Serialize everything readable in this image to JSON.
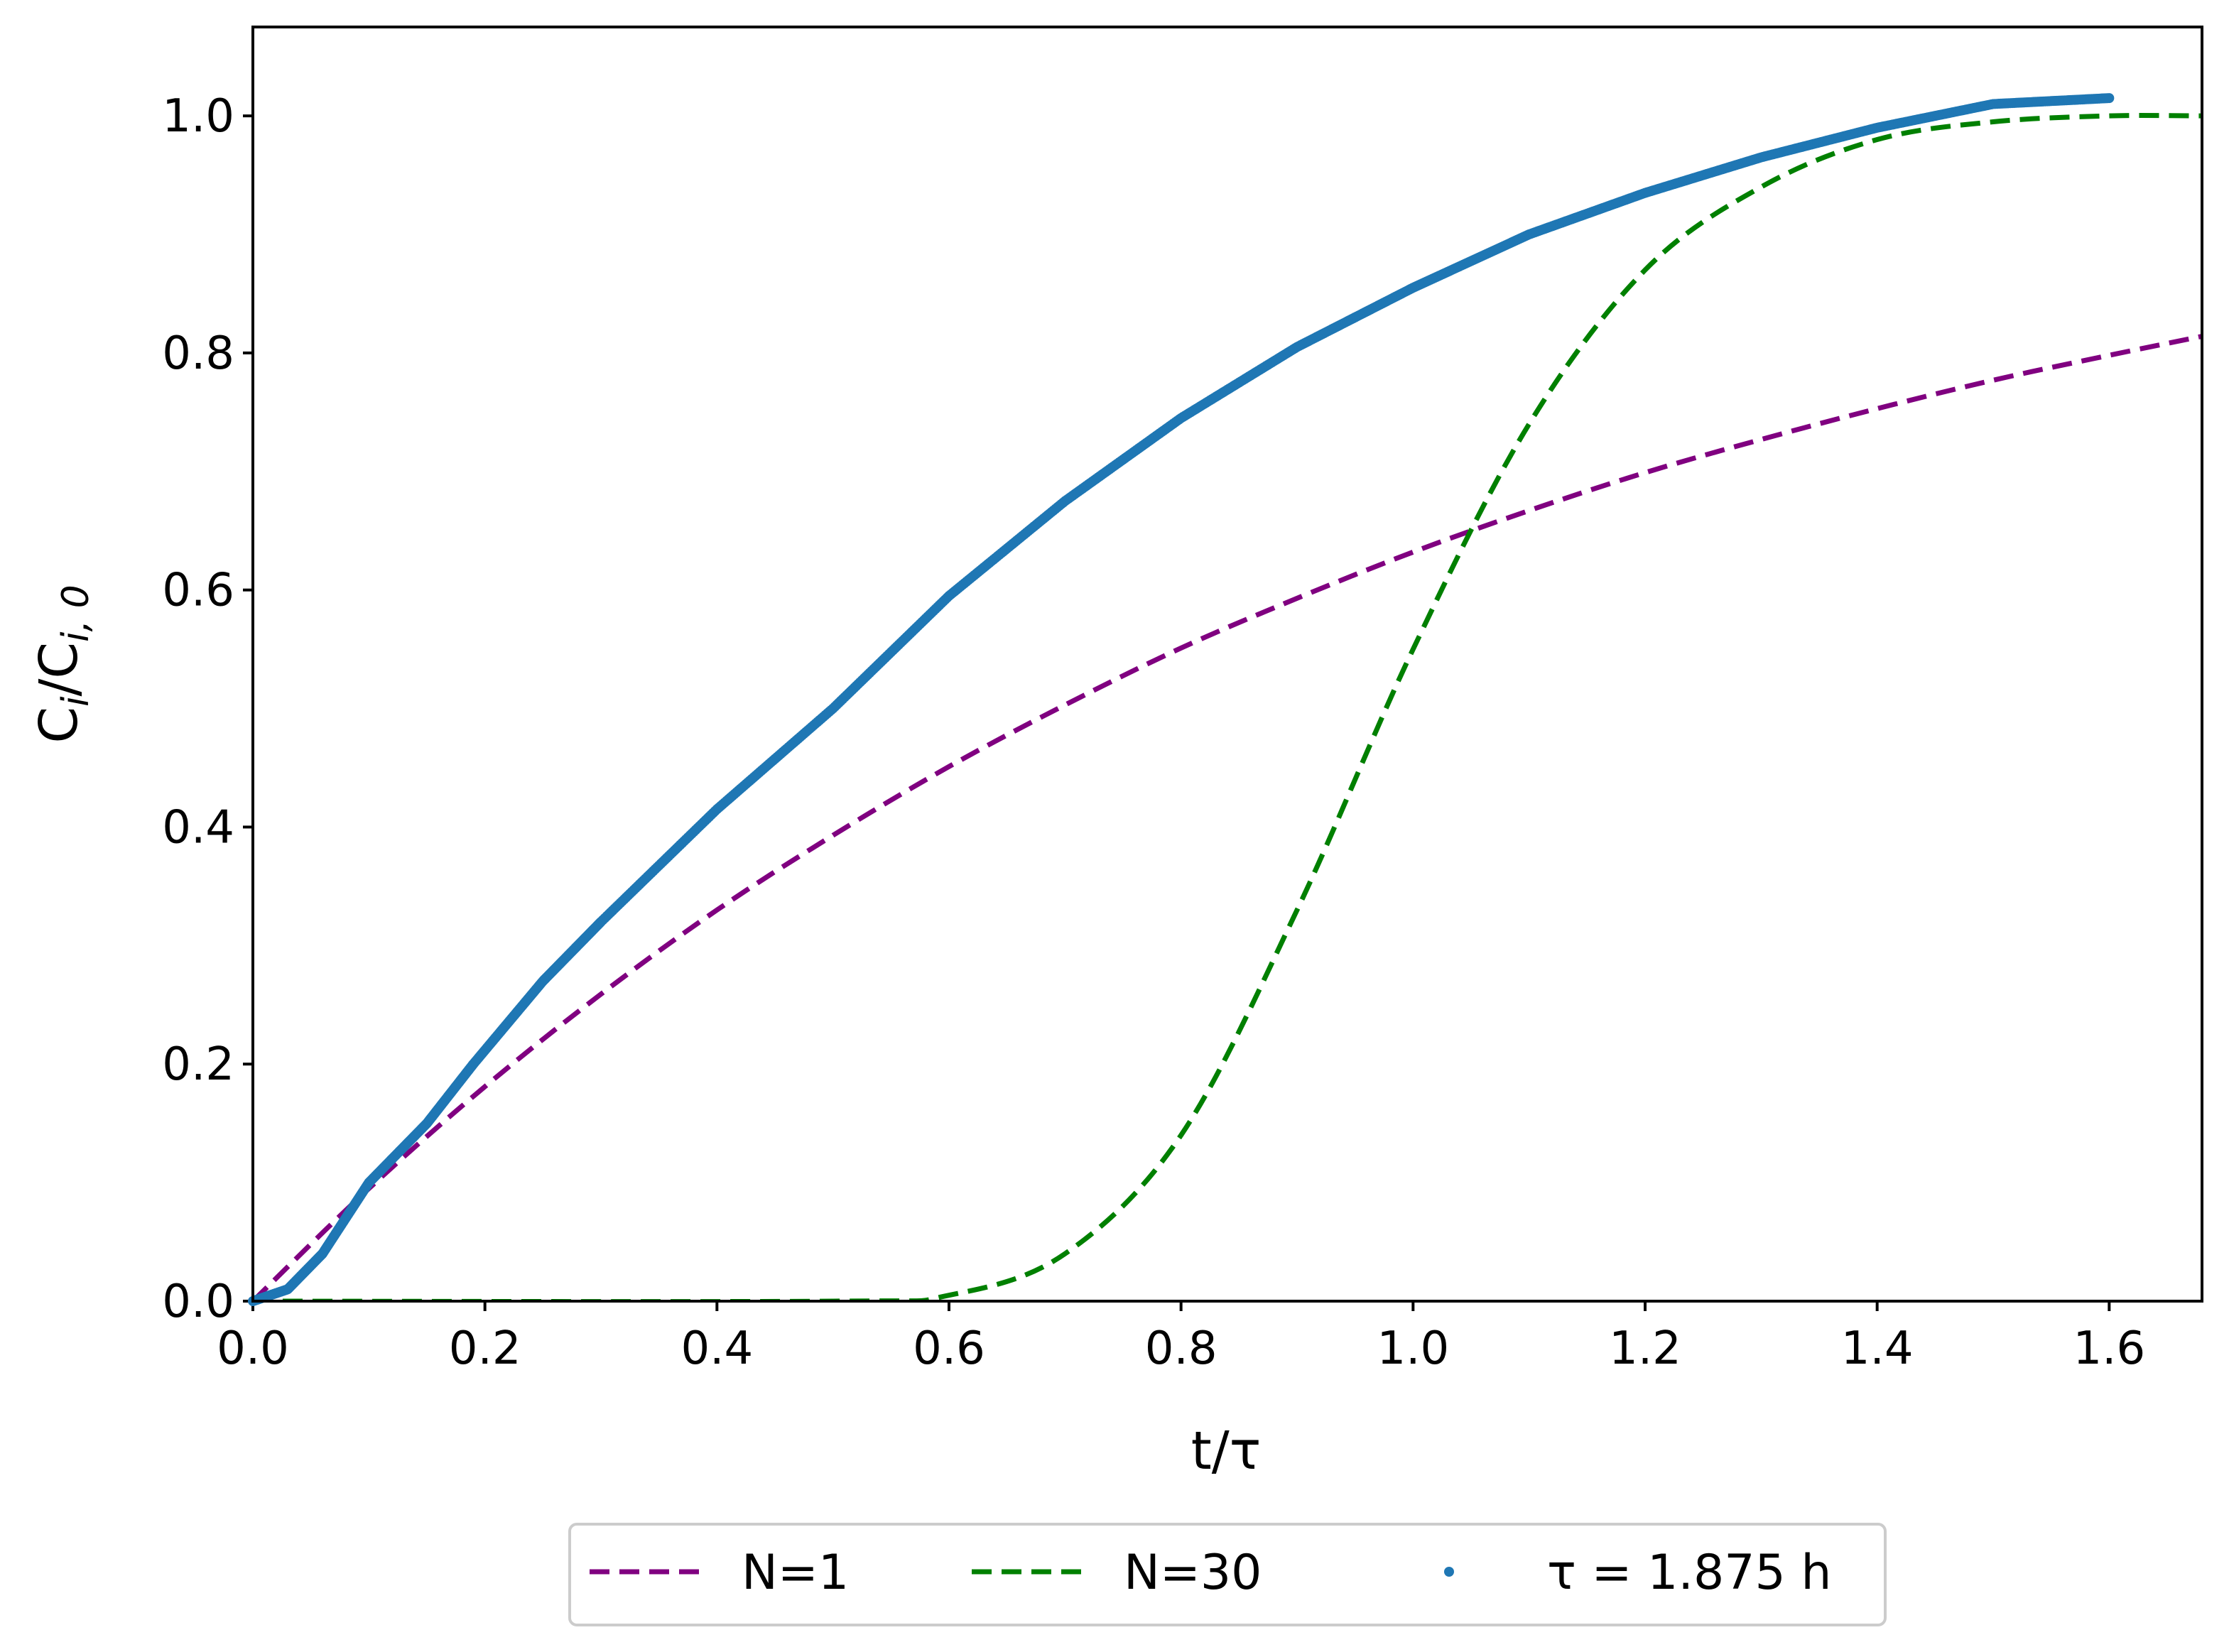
{
  "chart_data": {
    "type": "line",
    "title": "",
    "xlabel": "t/τ",
    "ylabel_main": "C",
    "ylabel_sub1": "i",
    "ylabel_mid": "/C",
    "ylabel_sub2": "i, 0",
    "xlim": [
      0.0,
      1.68
    ],
    "ylim": [
      0.0,
      1.075
    ],
    "x_ticks": [
      "0.0",
      "0.2",
      "0.4",
      "0.6",
      "0.8",
      "1.0",
      "1.2",
      "1.4",
      "1.6"
    ],
    "x_tick_values": [
      0.0,
      0.2,
      0.4,
      0.6,
      0.8,
      1.0,
      1.2,
      1.4,
      1.6
    ],
    "y_ticks": [
      "0.0",
      "0.2",
      "0.4",
      "0.6",
      "0.8",
      "1.0"
    ],
    "y_tick_values": [
      0.0,
      0.2,
      0.4,
      0.6,
      0.8,
      1.0
    ],
    "grid": false,
    "legend_position": "bottom-center",
    "series": [
      {
        "name": "N=1",
        "style": "dashed",
        "color": "#800080",
        "points": [
          [
            0.0,
            0.0
          ],
          [
            0.1,
            0.095
          ],
          [
            0.2,
            0.181
          ],
          [
            0.3,
            0.259
          ],
          [
            0.4,
            0.33
          ],
          [
            0.5,
            0.393
          ],
          [
            0.6,
            0.451
          ],
          [
            0.7,
            0.503
          ],
          [
            0.8,
            0.551
          ],
          [
            0.9,
            0.593
          ],
          [
            1.0,
            0.632
          ],
          [
            1.1,
            0.667
          ],
          [
            1.2,
            0.699
          ],
          [
            1.3,
            0.727
          ],
          [
            1.4,
            0.753
          ],
          [
            1.5,
            0.777
          ],
          [
            1.6,
            0.798
          ],
          [
            1.68,
            0.814
          ]
        ]
      },
      {
        "name": "N=30",
        "style": "dashed",
        "color": "#008000",
        "points": [
          [
            0.0,
            0.0
          ],
          [
            0.5,
            0.0
          ],
          [
            0.6,
            0.005
          ],
          [
            0.7,
            0.04
          ],
          [
            0.8,
            0.14
          ],
          [
            0.9,
            0.33
          ],
          [
            1.0,
            0.55
          ],
          [
            1.1,
            0.74
          ],
          [
            1.2,
            0.87
          ],
          [
            1.3,
            0.94
          ],
          [
            1.4,
            0.98
          ],
          [
            1.5,
            0.995
          ],
          [
            1.6,
            1.0
          ],
          [
            1.68,
            1.0
          ]
        ]
      },
      {
        "name": "τ = 1.875 h",
        "style": "markers",
        "color": "#1f77b4",
        "points": [
          [
            0.0,
            0.0
          ],
          [
            0.03,
            0.01
          ],
          [
            0.06,
            0.04
          ],
          [
            0.1,
            0.1
          ],
          [
            0.15,
            0.15
          ],
          [
            0.19,
            0.2
          ],
          [
            0.25,
            0.27
          ],
          [
            0.3,
            0.32
          ],
          [
            0.4,
            0.415
          ],
          [
            0.5,
            0.5
          ],
          [
            0.6,
            0.595
          ],
          [
            0.7,
            0.675
          ],
          [
            0.8,
            0.745
          ],
          [
            0.9,
            0.805
          ],
          [
            1.0,
            0.855
          ],
          [
            1.1,
            0.9
          ],
          [
            1.2,
            0.935
          ],
          [
            1.3,
            0.965
          ],
          [
            1.4,
            0.99
          ],
          [
            1.5,
            1.01
          ],
          [
            1.6,
            1.015
          ]
        ]
      }
    ]
  }
}
